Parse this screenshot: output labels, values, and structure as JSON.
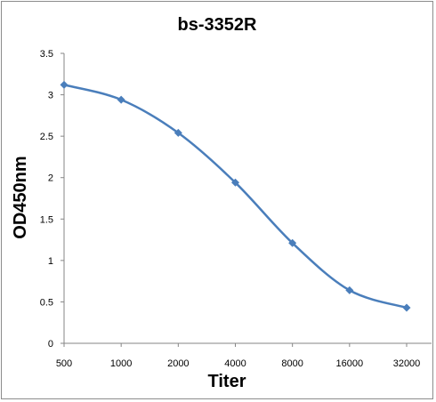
{
  "chart_data": {
    "type": "line",
    "title": "bs-3352R",
    "xlabel": "Titer",
    "ylabel": "OD450nm",
    "categories": [
      "500",
      "1000",
      "2000",
      "4000",
      "8000",
      "16000",
      "32000"
    ],
    "series": [
      {
        "values": [
          3.12,
          2.94,
          2.54,
          1.94,
          1.21,
          0.64,
          0.43
        ]
      }
    ],
    "ylim": [
      0,
      3.5
    ],
    "yticks": [
      "0",
      "0.5",
      "1",
      "1.5",
      "2",
      "2.5",
      "3",
      "3.5"
    ],
    "grid": false,
    "smooth": true,
    "marker": "diamond",
    "series_color": "#4a7ebb"
  }
}
